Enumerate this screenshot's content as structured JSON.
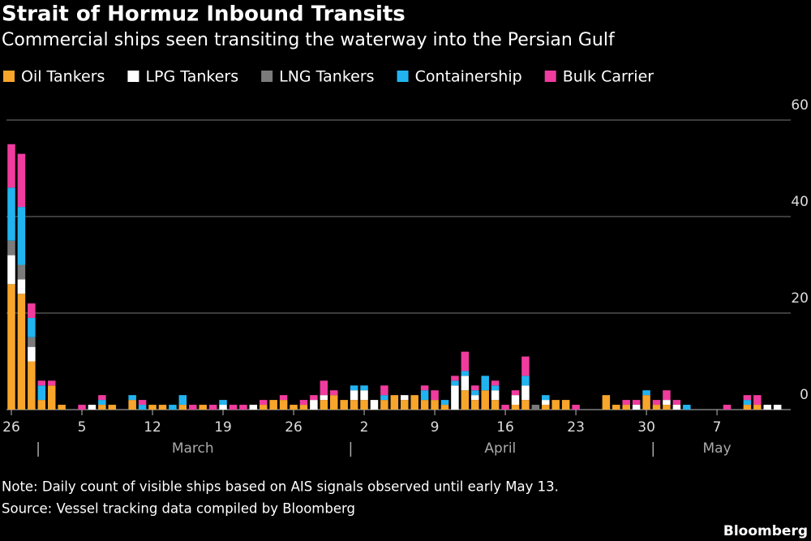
{
  "chart_data": {
    "type": "stacked_bar",
    "title": "Strait of Hormuz Inbound Transits",
    "subtitle": "Commercial ships seen transiting the waterway into the Persian Gulf",
    "categories": [
      "26",
      null,
      null,
      null,
      null,
      null,
      null,
      "5",
      null,
      null,
      null,
      null,
      null,
      null,
      "12",
      null,
      null,
      null,
      null,
      null,
      null,
      "19",
      null,
      null,
      null,
      null,
      null,
      null,
      "26",
      null,
      null,
      null,
      null,
      null,
      null,
      "2",
      null,
      null,
      null,
      null,
      null,
      null,
      "9",
      null,
      null,
      null,
      null,
      null,
      null,
      "16",
      null,
      null,
      null,
      null,
      null,
      null,
      "23",
      null,
      null,
      null,
      null,
      null,
      null,
      "30",
      null,
      null,
      null,
      null,
      null,
      null,
      "7",
      null,
      null,
      null,
      null,
      null,
      null
    ],
    "months": [
      "March",
      "April",
      "May"
    ],
    "series": [
      {
        "name": "Oil Tankers",
        "color": "#f7a52b",
        "values": [
          26,
          24,
          10,
          2,
          5,
          1,
          0,
          0,
          0,
          1,
          1,
          0,
          2,
          0,
          1,
          1,
          0,
          1,
          0,
          1,
          0,
          0,
          0,
          0,
          0,
          1,
          2,
          2,
          1,
          1,
          0,
          2,
          3,
          2,
          2,
          2,
          0,
          2,
          3,
          2,
          3,
          2,
          2,
          1,
          0,
          4,
          2,
          4,
          2,
          0,
          1,
          2,
          0,
          1,
          2,
          2,
          0,
          0,
          0,
          3,
          1,
          1,
          0,
          3,
          1,
          1,
          0,
          0,
          0,
          0,
          0,
          0,
          0,
          1,
          1,
          0,
          0
        ]
      },
      {
        "name": "LPG Tankers",
        "color": "#ffffff",
        "values": [
          6,
          3,
          3,
          0,
          0,
          0,
          0,
          0,
          1,
          0,
          0,
          0,
          0,
          0,
          0,
          0,
          0,
          0,
          0,
          0,
          0,
          1,
          0,
          0,
          1,
          0,
          0,
          0,
          0,
          0,
          2,
          1,
          0,
          0,
          2,
          2,
          2,
          0,
          0,
          1,
          0,
          0,
          0,
          0,
          5,
          3,
          1,
          0,
          2,
          0,
          2,
          3,
          0,
          1,
          0,
          0,
          0,
          0,
          0,
          0,
          0,
          0,
          1,
          0,
          0,
          1,
          1,
          0,
          0,
          0,
          0,
          0,
          0,
          0,
          0,
          1,
          1
        ]
      },
      {
        "name": "LNG Tankers",
        "color": "#7b7b7b",
        "values": [
          3,
          3,
          2,
          0,
          0,
          0,
          0,
          0,
          0,
          0,
          0,
          0,
          0,
          0,
          0,
          0,
          0,
          0,
          0,
          0,
          0,
          0,
          0,
          0,
          0,
          0,
          0,
          0,
          0,
          0,
          0,
          0,
          0,
          0,
          0,
          0,
          0,
          0,
          0,
          0,
          0,
          0,
          0,
          0,
          0,
          0,
          0,
          0,
          0,
          0,
          0,
          0,
          1,
          0,
          0,
          0,
          0,
          0,
          0,
          0,
          0,
          0,
          0,
          0,
          0,
          0,
          0,
          0,
          0,
          0,
          0,
          0,
          0,
          0,
          0,
          0,
          0
        ]
      },
      {
        "name": "Containership",
        "color": "#22b4f0",
        "values": [
          11,
          12,
          4,
          3,
          0,
          0,
          0,
          0,
          0,
          1,
          0,
          0,
          1,
          1,
          0,
          0,
          1,
          2,
          0,
          0,
          0,
          1,
          0,
          0,
          0,
          0,
          0,
          0,
          0,
          0,
          0,
          0,
          0,
          0,
          1,
          1,
          0,
          1,
          0,
          0,
          0,
          2,
          0,
          1,
          1,
          1,
          1,
          3,
          1,
          0,
          0,
          2,
          0,
          1,
          0,
          0,
          0,
          0,
          0,
          0,
          0,
          0,
          0,
          1,
          0,
          0,
          0,
          1,
          0,
          0,
          0,
          0,
          0,
          1,
          0,
          0,
          0
        ]
      },
      {
        "name": "Bulk Carrier",
        "color": "#f03c9e",
        "values": [
          9,
          11,
          3,
          1,
          1,
          0,
          0,
          1,
          0,
          1,
          0,
          0,
          0,
          1,
          0,
          0,
          0,
          0,
          1,
          0,
          1,
          0,
          1,
          1,
          0,
          1,
          0,
          1,
          0,
          1,
          1,
          3,
          1,
          0,
          0,
          0,
          0,
          2,
          0,
          0,
          0,
          1,
          2,
          0,
          1,
          4,
          1,
          0,
          1,
          1,
          1,
          4,
          0,
          0,
          0,
          0,
          1,
          0,
          0,
          0,
          0,
          1,
          1,
          0,
          1,
          2,
          1,
          0,
          0,
          0,
          0,
          1,
          0,
          1,
          2,
          0,
          0
        ]
      }
    ],
    "ylim": [
      0,
      60
    ],
    "yticks": [
      0,
      20,
      40,
      60
    ],
    "grid": true,
    "note": "Note: Daily count of visible ships based on AIS signals observed until early May 13.",
    "source": "Source: Vessel tracking data compiled by Bloomberg",
    "brand": "Bloomberg"
  }
}
